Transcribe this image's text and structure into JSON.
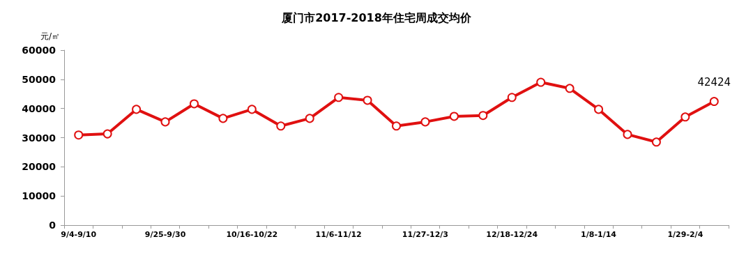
{
  "chart_data": {
    "type": "line",
    "title": "厦门市2017-2018年住宅周成交均价",
    "ylabel": "元/㎡",
    "categories": [
      "9/4-9/10",
      null,
      null,
      "9/25-9/30",
      null,
      null,
      "10/16-10/22",
      null,
      null,
      "11/6-11/12",
      null,
      null,
      "11/27-12/3",
      null,
      null,
      "12/18-12/24",
      null,
      null,
      "1/8-1/14",
      null,
      null,
      "1/29-2/4",
      null
    ],
    "values": [
      30900,
      31300,
      39700,
      35400,
      41600,
      36600,
      39700,
      34000,
      36600,
      43800,
      42800,
      34000,
      35400,
      37300,
      37600,
      43800,
      49000,
      46900,
      39700,
      31100,
      28500,
      37100,
      42424
    ],
    "value_labels": [
      null,
      null,
      null,
      null,
      null,
      null,
      null,
      null,
      null,
      null,
      null,
      null,
      null,
      null,
      null,
      null,
      null,
      null,
      null,
      null,
      null,
      null,
      "42424"
    ],
    "color": "#e01010",
    "marker": "circle",
    "line_style": "solid",
    "ylim": [
      0,
      60000
    ],
    "yticks": [
      0,
      10000,
      20000,
      30000,
      40000,
      50000,
      60000
    ],
    "grid": false
  }
}
